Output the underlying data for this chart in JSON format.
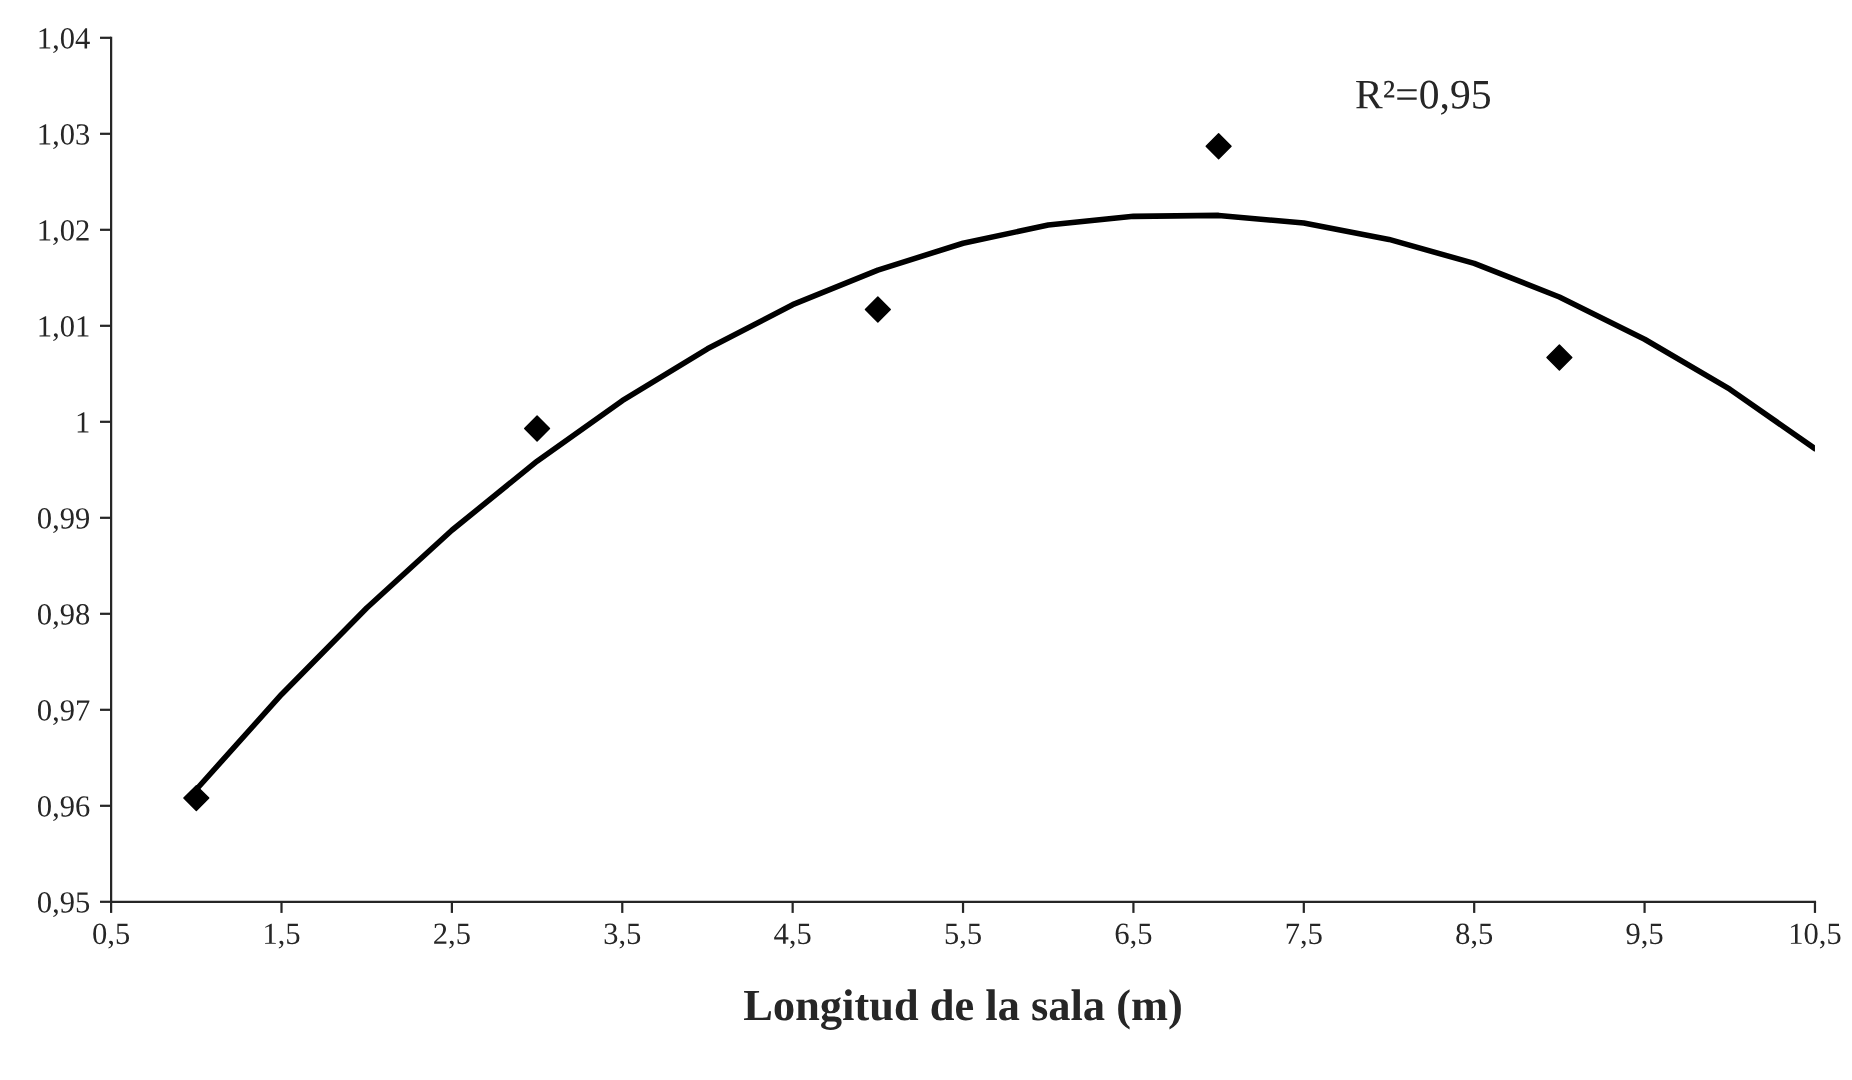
{
  "chart_data": {
    "type": "scatter",
    "xlabel": "Longitud de la sala (m)",
    "annotations": [
      "R²=0,95"
    ],
    "series": [
      {
        "color": "#000000",
        "marker": "diamond",
        "x": [
          1,
          3,
          5,
          7,
          9
        ],
        "values": [
          0.9608,
          0.9993,
          1.0117,
          1.0287,
          1.0067
        ]
      },
      {
        "type": "line",
        "color": "#000000",
        "marker": "none",
        "line_style": "solid",
        "x": [
          1,
          1.5,
          2,
          2.5,
          3,
          3.5,
          4,
          4.5,
          5,
          5.5,
          6,
          6.5,
          7,
          7.5,
          8,
          8.5,
          9,
          9.5,
          10,
          10.5
        ],
        "values": [
          0.9617,
          0.9716,
          0.9806,
          0.9887,
          0.9959,
          1.0022,
          1.0076,
          1.0122,
          1.0158,
          1.0186,
          1.0205,
          1.0214,
          1.0215,
          1.0207,
          1.019,
          1.0165,
          1.013,
          1.0086,
          1.0034,
          0.9972
        ]
      }
    ],
    "xlim": [
      0.5,
      10.5
    ],
    "xticks": [
      {
        "value": 0.5,
        "label": "0,5"
      },
      {
        "value": 1.5,
        "label": "1,5"
      },
      {
        "value": 2.5,
        "label": "2,5"
      },
      {
        "value": 3.5,
        "label": "3,5"
      },
      {
        "value": 4.5,
        "label": "4,5"
      },
      {
        "value": 5.5,
        "label": "5,5"
      },
      {
        "value": 6.5,
        "label": "6,5"
      },
      {
        "value": 7.5,
        "label": "7,5"
      },
      {
        "value": 8.5,
        "label": "8,5"
      },
      {
        "value": 9.5,
        "label": "9,5"
      },
      {
        "value": 10.5,
        "label": "10,5"
      }
    ],
    "ylim": [
      0.95,
      1.04
    ],
    "yticks": [
      {
        "value": 0.95,
        "label": "0,95"
      },
      {
        "value": 0.96,
        "label": "0,96"
      },
      {
        "value": 0.97,
        "label": "0,97"
      },
      {
        "value": 0.98,
        "label": "0,98"
      },
      {
        "value": 0.99,
        "label": "0,99"
      },
      1,
      {
        "value": 1.01,
        "label": "1,01"
      },
      {
        "value": 1.02,
        "label": "1,02"
      },
      {
        "value": 1.03,
        "label": "1,03"
      },
      {
        "value": 1.04,
        "label": "1,04"
      }
    ],
    "grid": false,
    "legend": false
  }
}
